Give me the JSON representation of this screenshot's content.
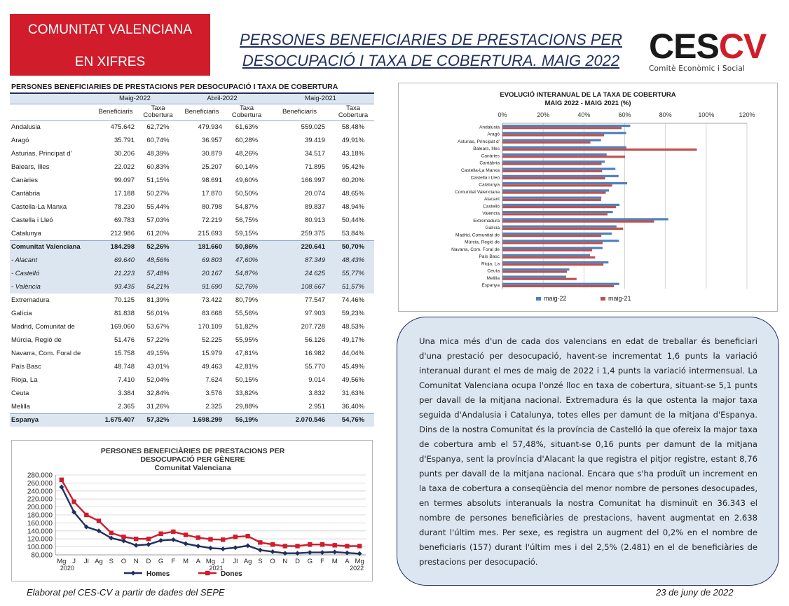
{
  "header": {
    "badge_line1": "COMUNITAT VALENCIANA",
    "badge_line2": "EN XIFRES",
    "title_line1": "PERSONES BENEFICIARIES DE PRESTACIONS PER",
    "title_line2": "DESOCUPACIÓ I TAXA DE COBERTURA. MAIG 2022",
    "logo_ces": "CES",
    "logo_cv": "CV",
    "logo_sub": "Comitè Econòmic i Social"
  },
  "table": {
    "title": "PERSONES BENEFICIARIES DE PRESTACIONS PER DESOCUPACIÓ I TAXA DE COBERTURA",
    "periods": [
      "Maig-2022",
      "Abril-2022",
      "Maig-2021"
    ],
    "col_benef": "Beneficiaris",
    "col_taxa1": "Taxa",
    "col_taxa2": "Cobertura",
    "rows": [
      {
        "name": "Andalusia",
        "v": [
          "475.642",
          "62,72%",
          "479.934",
          "61,63%",
          "559.025",
          "58,48%"
        ],
        "kind": "n"
      },
      {
        "name": "Aragó",
        "v": [
          "35.791",
          "60,74%",
          "36.957",
          "60,28%",
          "39.419",
          "49,91%"
        ],
        "kind": "n"
      },
      {
        "name": "Asturias, Principat d'",
        "v": [
          "30.206",
          "48,39%",
          "30.879",
          "48,26%",
          "34.517",
          "43,18%"
        ],
        "kind": "n"
      },
      {
        "name": "Balears, Illes",
        "v": [
          "22.022",
          "60,83%",
          "25.207",
          "60,14%",
          "71.895",
          "95,42%"
        ],
        "kind": "n"
      },
      {
        "name": "Canàries",
        "v": [
          "99.097",
          "51,15%",
          "98.691",
          "49,60%",
          "166.997",
          "60,20%"
        ],
        "kind": "n"
      },
      {
        "name": "Cantàbria",
        "v": [
          "17.188",
          "50,27%",
          "17.870",
          "50,50%",
          "20.074",
          "48,65%"
        ],
        "kind": "n"
      },
      {
        "name": "Castella-La Manxa",
        "v": [
          "78.230",
          "55,44%",
          "80.798",
          "54,87%",
          "89.837",
          "48,94%"
        ],
        "kind": "n"
      },
      {
        "name": "Castella i Lleó",
        "v": [
          "69.783",
          "57,03%",
          "72.219",
          "56,75%",
          "80.913",
          "50,44%"
        ],
        "kind": "n"
      },
      {
        "name": "Catalunya",
        "v": [
          "212.986",
          "61,20%",
          "215.693",
          "59,15%",
          "259.375",
          "53,84%"
        ],
        "kind": "n"
      },
      {
        "name": "Comunitat Valenciana",
        "v": [
          "184.298",
          "52,26%",
          "181.660",
          "50,86%",
          "220.641",
          "50,70%"
        ],
        "kind": "cv"
      },
      {
        "name": "-  Alacant",
        "v": [
          "69.640",
          "48,56%",
          "69.803",
          "47,60%",
          "87.349",
          "48,43%"
        ],
        "kind": "prov"
      },
      {
        "name": "-  Castelló",
        "v": [
          "21.223",
          "57,48%",
          "20.167",
          "54,87%",
          "24.625",
          "55,77%"
        ],
        "kind": "prov"
      },
      {
        "name": "-  València",
        "v": [
          "93.435",
          "54,21%",
          "91.690",
          "52,76%",
          "108.667",
          "51,57%"
        ],
        "kind": "prov"
      },
      {
        "name": "Extremadura",
        "v": [
          "70.125",
          "81,39%",
          "73.422",
          "80,79%",
          "77.547",
          "74,46%"
        ],
        "kind": "n"
      },
      {
        "name": "Galícia",
        "v": [
          "81.838",
          "56,01%",
          "83.668",
          "55,56%",
          "97.903",
          "59,23%"
        ],
        "kind": "n"
      },
      {
        "name": "Madrid, Comunitat de",
        "v": [
          "169.060",
          "53,67%",
          "170.109",
          "51,82%",
          "207.728",
          "48,53%"
        ],
        "kind": "n"
      },
      {
        "name": "Múrcia, Regió de",
        "v": [
          "51.476",
          "57,22%",
          "52.225",
          "55,95%",
          "56.126",
          "49,17%"
        ],
        "kind": "n"
      },
      {
        "name": "Navarra, Com. Foral de",
        "v": [
          "15.758",
          "49,15%",
          "15.979",
          "47,81%",
          "16.982",
          "44,04%"
        ],
        "kind": "n"
      },
      {
        "name": "País Basc",
        "v": [
          "48.748",
          "43,01%",
          "49.463",
          "42,81%",
          "55.770",
          "45,49%"
        ],
        "kind": "n"
      },
      {
        "name": "Rioja, La",
        "v": [
          "7.410",
          "52,04%",
          "7.624",
          "50,15%",
          "9.014",
          "49,56%"
        ],
        "kind": "n"
      },
      {
        "name": "Ceuta",
        "v": [
          "3.384",
          "32,84%",
          "3.576",
          "33,82%",
          "3.832",
          "31,63%"
        ],
        "kind": "n"
      },
      {
        "name": "Melilla",
        "v": [
          "2.365",
          "31,26%",
          "2.325",
          "29,88%",
          "2.951",
          "36,40%"
        ],
        "kind": "n"
      },
      {
        "name": "Espanya",
        "v": [
          "1.675.407",
          "57,32%",
          "1.698.299",
          "56,19%",
          "2.070.546",
          "54,76%"
        ],
        "kind": "esp"
      }
    ]
  },
  "chart_data": [
    {
      "type": "bar",
      "orientation": "horizontal",
      "title": "EVOLUCIÓ INTERANUAL DE LA TAXA DE COBERTURA",
      "subtitle": "MAIG 2022 - MAIG 2021 (%)",
      "categories": [
        "Andalusia",
        "Aragó",
        "Asturias, Principat d'",
        "Balears, Illes",
        "Canàries",
        "Cantàbria",
        "Castella-La Manxa",
        "Castella i Lleó",
        "Catalunya",
        "Comunitat Valenciana",
        "Alacant",
        "Castelló",
        "València",
        "Extremadura",
        "Galícia",
        "Madrid, Comunitat de",
        "Múrcia, Regió de",
        "Navarra, Com. Foral de",
        "País Basc",
        "Rioja, La",
        "Ceuta",
        "Melilla",
        "Espanya"
      ],
      "series": [
        {
          "name": "maig-22",
          "color": "#4f81bd",
          "values": [
            62.72,
            60.74,
            48.39,
            60.83,
            51.15,
            50.27,
            55.44,
            57.03,
            61.2,
            52.26,
            48.56,
            57.48,
            54.21,
            81.39,
            56.01,
            53.67,
            57.22,
            49.15,
            43.01,
            52.04,
            32.84,
            31.26,
            57.32
          ]
        },
        {
          "name": "maig-21",
          "color": "#c0504d",
          "values": [
            58.48,
            49.91,
            43.18,
            95.42,
            60.2,
            48.65,
            48.94,
            50.44,
            53.84,
            50.7,
            48.43,
            55.77,
            51.57,
            74.46,
            59.23,
            48.53,
            49.17,
            44.04,
            45.49,
            49.56,
            31.63,
            36.4,
            54.76
          ]
        }
      ],
      "xticks": [
        "0%",
        "20%",
        "40%",
        "60%",
        "80%",
        "100%",
        "120%"
      ],
      "xlim": [
        0,
        120
      ],
      "grid": true,
      "legend": "bottom"
    },
    {
      "type": "line",
      "title": "PERSONES BENEFICIÀRIES DE PRESTACIONS PER",
      "title2": "DESOCUPACIÓ PER GÈNERE",
      "subtitle": "Comunitat Valenciana",
      "x": [
        "Mg",
        "J",
        "Jl",
        "Ag",
        "S",
        "O",
        "N",
        "D",
        "G",
        "F",
        "M",
        "A",
        "Mg",
        "J",
        "Jl",
        "Ag",
        "S",
        "O",
        "N",
        "D",
        "G",
        "F",
        "M",
        "A",
        "Mg"
      ],
      "year_labels": [
        "2020",
        "2021",
        "2022"
      ],
      "yticks": [
        "80.000",
        "100.000",
        "120.000",
        "140.000",
        "160.000",
        "180.000",
        "200.000",
        "220.000",
        "240.000",
        "260.000",
        "280.000"
      ],
      "ylim": [
        80000,
        280000
      ],
      "grid": true,
      "legend": "bottom",
      "series": [
        {
          "name": "Homes",
          "color": "#1f2f5e",
          "values": [
            250000,
            187000,
            150000,
            140000,
            122000,
            115000,
            104000,
            106000,
            116000,
            118000,
            108000,
            102000,
            97000,
            95000,
            98000,
            103000,
            92000,
            88000,
            84000,
            84000,
            86000,
            86000,
            87000,
            85000,
            83000
          ]
        },
        {
          "name": "Dones",
          "color": "#d01c2b",
          "values": [
            268000,
            213000,
            180000,
            165000,
            135000,
            125000,
            120000,
            120000,
            133000,
            138000,
            130000,
            123000,
            119000,
            118000,
            125000,
            127000,
            111000,
            106000,
            102000,
            102000,
            106000,
            106000,
            104000,
            102000,
            102000
          ]
        }
      ]
    }
  ],
  "text": {
    "paragraph": "Una mica més d'un de cada dos valencians en edat de treballar és beneficiari d'una prestació per desocupació, havent-se incrementat 1,6 punts la variació interanual durant el mes de maig de 2022 i 1,4 punts la variació intermensual. La Comunitat Valenciana ocupa l'onzé lloc en taxa de cobertura, situant-se 5,1 punts per davall de la mitjana nacional. Extremadura és la que ostenta la major taxa seguida d'Andalusia i Catalunya, totes elles per damunt de la mitjana d'Espanya. Dins de la nostra Comunitat és la província de Castelló la que ofereix la major taxa de cobertura amb el 57,48%, situant-se 0,16 punts per damunt de la mitjana d'Espanya, sent la província d'Alacant la que registra el pitjor registre, estant 8,76 punts per davall de la mitjana nacional. Encara que s'ha produït un increment en la taxa de cobertura a conseqüència del menor nombre de persones desocupades, en termes absoluts interanuals la nostra Comunitat ha disminuït en 36.343 el nombre de persones beneficiàries de prestacions, havent augmentat en 2.638 durant l'últim mes. Per sexe, es registra un augment del 0,2% en el nombre de beneficiaris (157) durant l'últim mes i del 2,5% (2.481) en el de beneficiàries de prestacions per desocupació."
  },
  "footer": {
    "source": "Elaborat pel CES-CV a partir de dades del SEPE",
    "date": "23 de juny de 2022"
  }
}
